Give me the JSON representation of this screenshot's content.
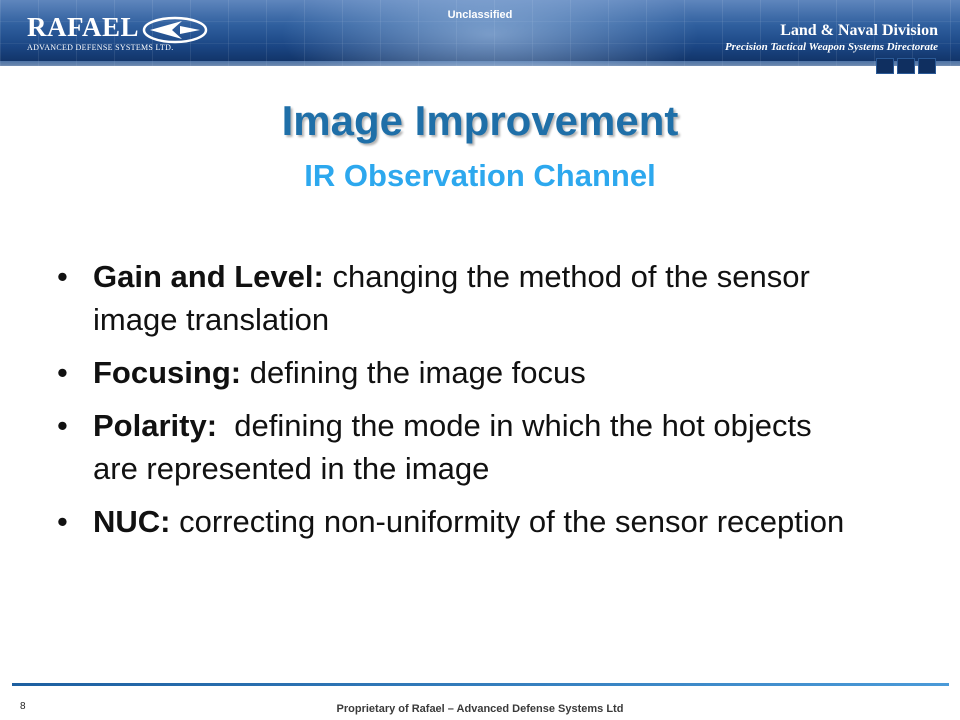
{
  "header": {
    "logo_word": "RAFAEL",
    "logo_sub": "ADVANCED DEFENSE SYSTEMS LTD.",
    "classification": "Unclassified",
    "division_title": "Land & Naval Division",
    "division_sub": "Precision Tactical Weapon Systems Directorate"
  },
  "slide": {
    "title": "Image Improvement",
    "subtitle": "IR Observation Channel",
    "bullets": [
      {
        "term": "Gain and Level:",
        "text": " changing the method of the sensor image translation"
      },
      {
        "term": "Focusing:",
        "text": " defining the image focus"
      },
      {
        "term": "Polarity:",
        "text": "  defining the mode in which the hot objects are represented in the image"
      },
      {
        "term": "NUC:",
        "text": " correcting non-uniformity of the sensor reception"
      }
    ]
  },
  "footer": {
    "page_number": "8",
    "text": "Proprietary of Rafael – Advanced Defense Systems Ltd"
  },
  "colors": {
    "title": "#1f6fa8",
    "subtitle": "#2da8ee",
    "header_dark": "#0f2f60",
    "footer_line": "#1d5fa0"
  }
}
